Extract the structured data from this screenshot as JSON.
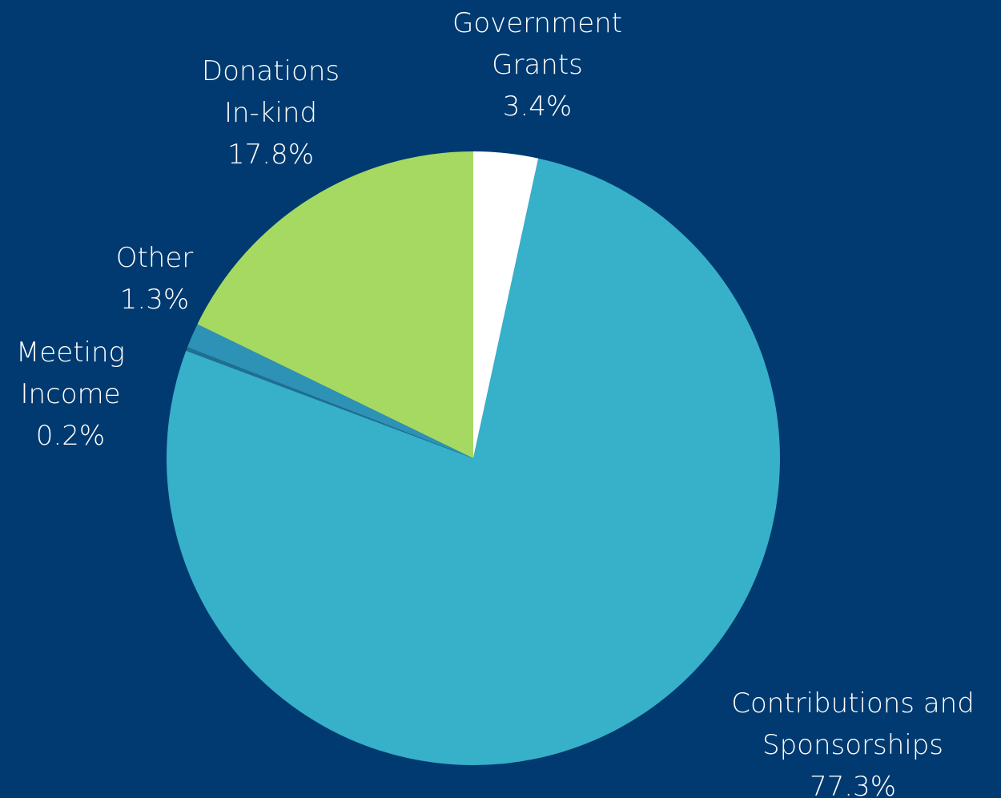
{
  "background": "#003a70",
  "chart_data": {
    "type": "pie",
    "title": "",
    "start_angle_deg": 0,
    "direction": "clockwise",
    "slices": [
      {
        "label_lines": [
          "Government",
          "Grants"
        ],
        "percent_label": "3.4%",
        "value": 3.4,
        "color": "#ffffff"
      },
      {
        "label_lines": [
          "Contributions and",
          "Sponsorships"
        ],
        "percent_label": "77.3%",
        "value": 77.3,
        "color": "#37b0c9"
      },
      {
        "label_lines": [
          "Meeting",
          "Income"
        ],
        "percent_label": "0.2%",
        "value": 0.2,
        "color": "#1f6f90"
      },
      {
        "label_lines": [
          "Other"
        ],
        "percent_label": "1.3%",
        "value": 1.3,
        "color": "#2e91b6"
      },
      {
        "label_lines": [
          "Donations",
          "In-kind"
        ],
        "percent_label": "17.8%",
        "value": 17.8,
        "color": "#a5d962"
      }
    ]
  }
}
